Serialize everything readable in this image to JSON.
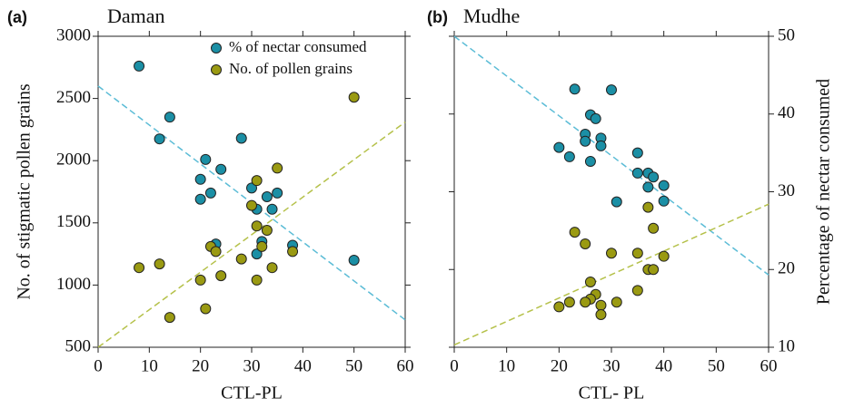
{
  "chart_data": [
    {
      "type": "scatter",
      "panel_label": "(a)",
      "title": "Daman",
      "xlabel": "CTL-PL",
      "ylabel": "No. of stigmatic pollen grains",
      "xlim": [
        0,
        60
      ],
      "xticks": [
        0,
        10,
        20,
        30,
        40,
        50,
        60
      ],
      "ylim": [
        500,
        3000
      ],
      "yticks": [
        500,
        1000,
        1500,
        2000,
        2500,
        3000
      ],
      "legend": "upper right",
      "series": [
        {
          "name": "% of nectar consumed",
          "color": "#1b8fa5",
          "x": [
            8,
            14,
            12,
            21,
            24,
            20,
            22,
            20,
            28,
            30,
            33,
            35,
            34,
            31,
            23,
            32,
            31,
            38,
            50
          ],
          "values": [
            2760,
            2350,
            2175,
            2010,
            1930,
            1850,
            1740,
            1690,
            2180,
            1780,
            1710,
            1740,
            1610,
            1610,
            1330,
            1350,
            1250,
            1320,
            1200
          ]
        },
        {
          "name": "No. of pollen grains",
          "color": "#9a9a12",
          "x": [
            8,
            12,
            14,
            20,
            21,
            22,
            23,
            24,
            28,
            31,
            34,
            30,
            31,
            33,
            31,
            32,
            35,
            38,
            50
          ],
          "values": [
            1140,
            1170,
            740,
            1040,
            810,
            1310,
            1270,
            1075,
            1210,
            1040,
            1140,
            1640,
            1840,
            1440,
            1475,
            1310,
            1940,
            1270,
            2510
          ]
        }
      ],
      "trendlines": [
        {
          "color": "#5bbcd6",
          "x": [
            0,
            60
          ],
          "values": [
            2600,
            720
          ]
        },
        {
          "color": "#b5c14a",
          "x": [
            0,
            60
          ],
          "values": [
            500,
            2310
          ]
        }
      ]
    },
    {
      "type": "scatter",
      "panel_label": "(b)",
      "title": "Mudhe",
      "xlabel": "CTL- PL",
      "y2label": "Percentage of nectar consumed",
      "xlim": [
        0,
        60
      ],
      "xticks": [
        0,
        10,
        20,
        30,
        40,
        50,
        60
      ],
      "y2lim": [
        10,
        50
      ],
      "y2ticks": [
        10,
        20,
        30,
        40,
        50
      ],
      "series": [
        {
          "color": "#1b8fa5",
          "x": [
            23,
            30,
            26,
            27,
            25,
            28,
            20,
            25,
            28,
            22,
            26,
            35,
            35,
            37,
            38,
            40,
            37,
            40,
            31
          ],
          "values": [
            43.2,
            43.1,
            39.9,
            39.4,
            37.4,
            36.9,
            35.7,
            36.5,
            35.9,
            34.5,
            33.9,
            35.0,
            32.4,
            32.4,
            31.9,
            30.8,
            30.6,
            28.8,
            28.7
          ]
        },
        {
          "color": "#9a9a12",
          "x": [
            23,
            25,
            37,
            38,
            30,
            35,
            40,
            37,
            38,
            26,
            35,
            27,
            26,
            22,
            25,
            20,
            31,
            28,
            28
          ],
          "values": [
            24.8,
            23.3,
            28.0,
            25.3,
            22.1,
            22.1,
            21.7,
            20.0,
            20.0,
            18.4,
            17.3,
            16.8,
            16.2,
            15.8,
            15.8,
            15.2,
            15.8,
            15.4,
            14.2
          ]
        }
      ],
      "trendlines": [
        {
          "color": "#5bbcd6",
          "x": [
            0,
            60
          ],
          "values": [
            50,
            19.3
          ]
        },
        {
          "color": "#b5c14a",
          "x": [
            0,
            60
          ],
          "values": [
            10.3,
            28.4
          ]
        }
      ]
    }
  ]
}
